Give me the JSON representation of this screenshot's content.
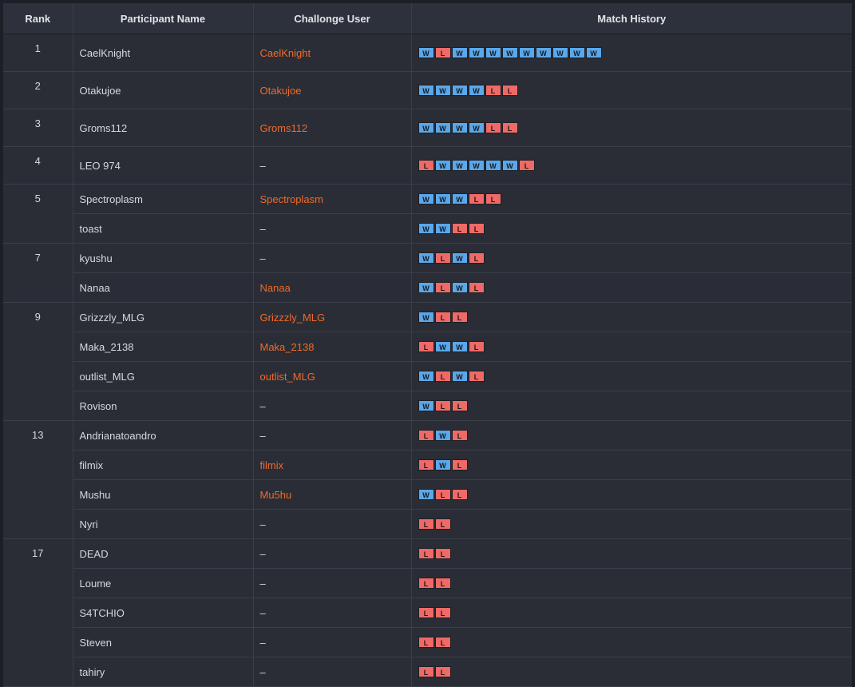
{
  "headers": {
    "rank": "Rank",
    "participant": "Participant Name",
    "challonge": "Challonge User",
    "history": "Match History"
  },
  "colors": {
    "win": "#5aa7ea",
    "loss": "#ef6a66",
    "challonge_link": "#f06a2b"
  },
  "groups": [
    {
      "rank": "1",
      "rows": [
        {
          "name": "CaelKnight",
          "challonge": "CaelKnight",
          "history": [
            "W",
            "L",
            "W",
            "W",
            "W",
            "W",
            "W",
            "W",
            "W",
            "W",
            "W"
          ]
        }
      ]
    },
    {
      "rank": "2",
      "rows": [
        {
          "name": "Otakujoe",
          "challonge": "Otakujoe",
          "history": [
            "W",
            "W",
            "W",
            "W",
            "L",
            "L"
          ]
        }
      ]
    },
    {
      "rank": "3",
      "rows": [
        {
          "name": "Groms112",
          "challonge": "Groms112",
          "history": [
            "W",
            "W",
            "W",
            "W",
            "L",
            "L"
          ]
        }
      ]
    },
    {
      "rank": "4",
      "rows": [
        {
          "name": "LEO 974",
          "challonge": "–",
          "history": [
            "L",
            "W",
            "W",
            "W",
            "W",
            "W",
            "L"
          ]
        }
      ]
    },
    {
      "rank": "5",
      "rows": [
        {
          "name": "Spectroplasm",
          "challonge": "Spectroplasm",
          "history": [
            "W",
            "W",
            "W",
            "L",
            "L"
          ]
        },
        {
          "name": "toast",
          "challonge": "–",
          "history": [
            "W",
            "W",
            "L",
            "L"
          ]
        }
      ]
    },
    {
      "rank": "7",
      "rows": [
        {
          "name": "kyushu",
          "challonge": "–",
          "history": [
            "W",
            "L",
            "W",
            "L"
          ]
        },
        {
          "name": "Nanaa",
          "challonge": "Nanaa",
          "history": [
            "W",
            "L",
            "W",
            "L"
          ]
        }
      ]
    },
    {
      "rank": "9",
      "rows": [
        {
          "name": "Grizzzly_MLG",
          "challonge": "Grizzzly_MLG",
          "history": [
            "W",
            "L",
            "L"
          ]
        },
        {
          "name": "Maka_2138",
          "challonge": "Maka_2138",
          "history": [
            "L",
            "W",
            "W",
            "L"
          ]
        },
        {
          "name": "outlist_MLG",
          "challonge": "outlist_MLG",
          "history": [
            "W",
            "L",
            "W",
            "L"
          ]
        },
        {
          "name": "Rovison",
          "challonge": "–",
          "history": [
            "W",
            "L",
            "L"
          ]
        }
      ]
    },
    {
      "rank": "13",
      "rows": [
        {
          "name": "Andrianatoandro",
          "challonge": "–",
          "history": [
            "L",
            "W",
            "L"
          ]
        },
        {
          "name": "filmix",
          "challonge": "filmix",
          "history": [
            "L",
            "W",
            "L"
          ]
        },
        {
          "name": "Mushu",
          "challonge": "Mu5hu",
          "history": [
            "W",
            "L",
            "L"
          ]
        },
        {
          "name": "Nyri",
          "challonge": "–",
          "history": [
            "L",
            "L"
          ]
        }
      ]
    },
    {
      "rank": "17",
      "rows": [
        {
          "name": "DEAD",
          "challonge": "–",
          "history": [
            "L",
            "L"
          ]
        },
        {
          "name": "Loume",
          "challonge": "–",
          "history": [
            "L",
            "L"
          ]
        },
        {
          "name": "S4TCHIO",
          "challonge": "–",
          "history": [
            "L",
            "L"
          ]
        },
        {
          "name": "Steven",
          "challonge": "–",
          "history": [
            "L",
            "L"
          ]
        },
        {
          "name": "tahiry",
          "challonge": "–",
          "history": [
            "L",
            "L"
          ]
        }
      ]
    }
  ]
}
